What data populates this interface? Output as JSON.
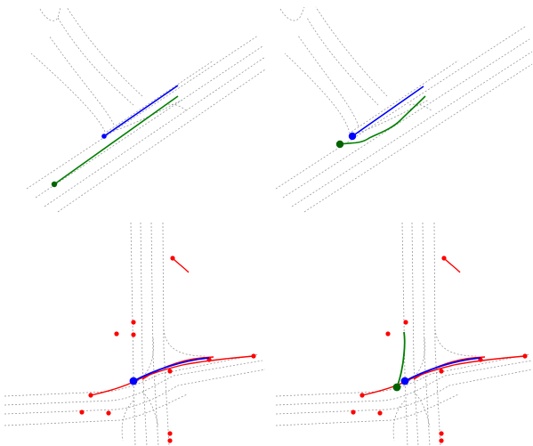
{
  "colors": {
    "ego_history": "#0000ff",
    "ground_truth": "#008000",
    "prediction": "#008000",
    "agents": "#ff0000",
    "lanes": "#a0a0a0",
    "background": "#ffffff"
  },
  "panels": [
    {
      "id": "top-left",
      "shows": [
        "ego-history",
        "ground-truth"
      ]
    },
    {
      "id": "top-right",
      "shows": [
        "ego-history",
        "predicted-trajectory"
      ]
    },
    {
      "id": "bottom-left",
      "shows": [
        "ego-history",
        "other-agents"
      ]
    },
    {
      "id": "bottom-right",
      "shows": [
        "ego-history",
        "other-agents",
        "predicted-trajectory"
      ]
    }
  ]
}
